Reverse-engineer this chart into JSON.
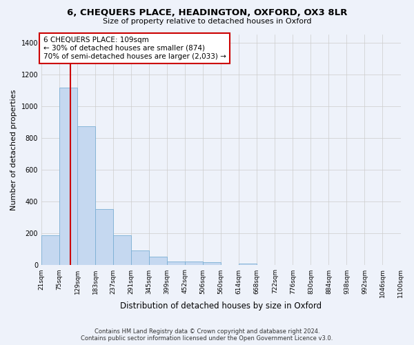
{
  "title": "6, CHEQUERS PLACE, HEADINGTON, OXFORD, OX3 8LR",
  "subtitle": "Size of property relative to detached houses in Oxford",
  "xlabel": "Distribution of detached houses by size in Oxford",
  "ylabel": "Number of detached properties",
  "bin_labels": [
    "21sqm",
    "75sqm",
    "129sqm",
    "183sqm",
    "237sqm",
    "291sqm",
    "345sqm",
    "399sqm",
    "452sqm",
    "506sqm",
    "560sqm",
    "614sqm",
    "668sqm",
    "722sqm",
    "776sqm",
    "830sqm",
    "884sqm",
    "938sqm",
    "992sqm",
    "1046sqm",
    "1100sqm"
  ],
  "bar_heights": [
    190,
    1115,
    875,
    355,
    190,
    95,
    55,
    25,
    25,
    18,
    0,
    10,
    0,
    0,
    0,
    0,
    0,
    0,
    0,
    0
  ],
  "bar_color": "#c5d8f0",
  "bar_edge_color": "#7aafd4",
  "red_line_color": "#cc0000",
  "annotation_text": "6 CHEQUERS PLACE: 109sqm\n← 30% of detached houses are smaller (874)\n70% of semi-detached houses are larger (2,033) →",
  "annotation_box_color": "#ffffff",
  "annotation_box_edgecolor": "#cc0000",
  "ylim": [
    0,
    1450
  ],
  "footer_line1": "Contains HM Land Registry data © Crown copyright and database right 2024.",
  "footer_line2": "Contains public sector information licensed under the Open Government Licence v3.0.",
  "background_color": "#eef2fa",
  "grid_color": "#cccccc",
  "title_fontsize": 9.5,
  "subtitle_fontsize": 8,
  "ylabel_fontsize": 8,
  "xlabel_fontsize": 8.5,
  "tick_fontsize": 6.5,
  "annot_fontsize": 7.5,
  "footer_fontsize": 6
}
